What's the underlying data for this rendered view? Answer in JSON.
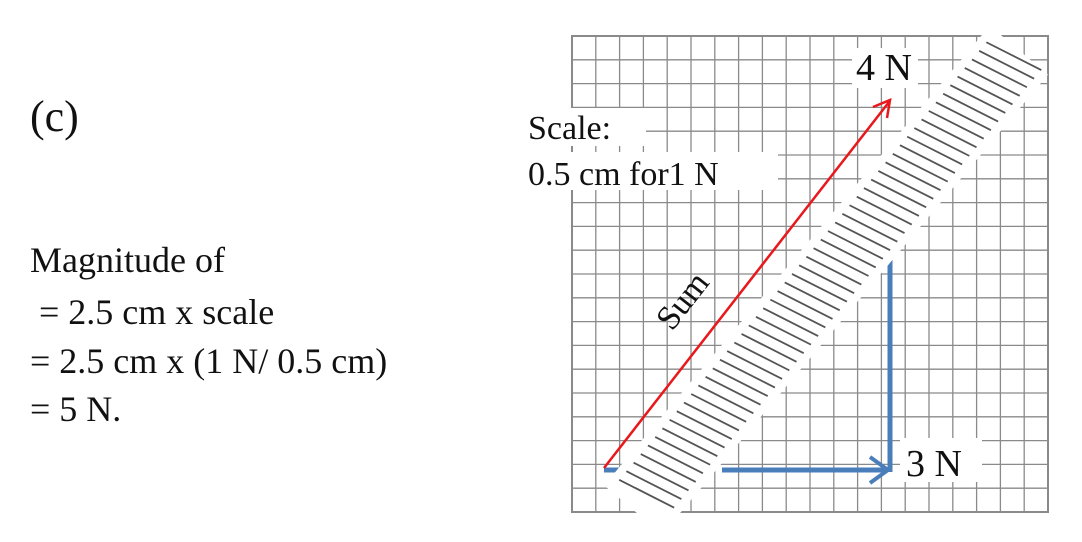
{
  "part_label": "(c)",
  "calculation": [
    "Magnitude of",
    " = 2.5 cm x scale",
    "= 2.5 cm x (1 N/ 0.5 cm)",
    "= 5 N."
  ],
  "scale": {
    "title": "Scale:",
    "value": "0.5 cm for1 N"
  },
  "vectors": {
    "vertical_label": "4 N",
    "horizontal_label": "3 N",
    "sum_label": "Sum"
  },
  "colors": {
    "component_arrow": "#4a7ebb",
    "resultant_arrow": "#e8181c",
    "grid": "#8a8a8a",
    "ruler_ticks": "#555555"
  }
}
